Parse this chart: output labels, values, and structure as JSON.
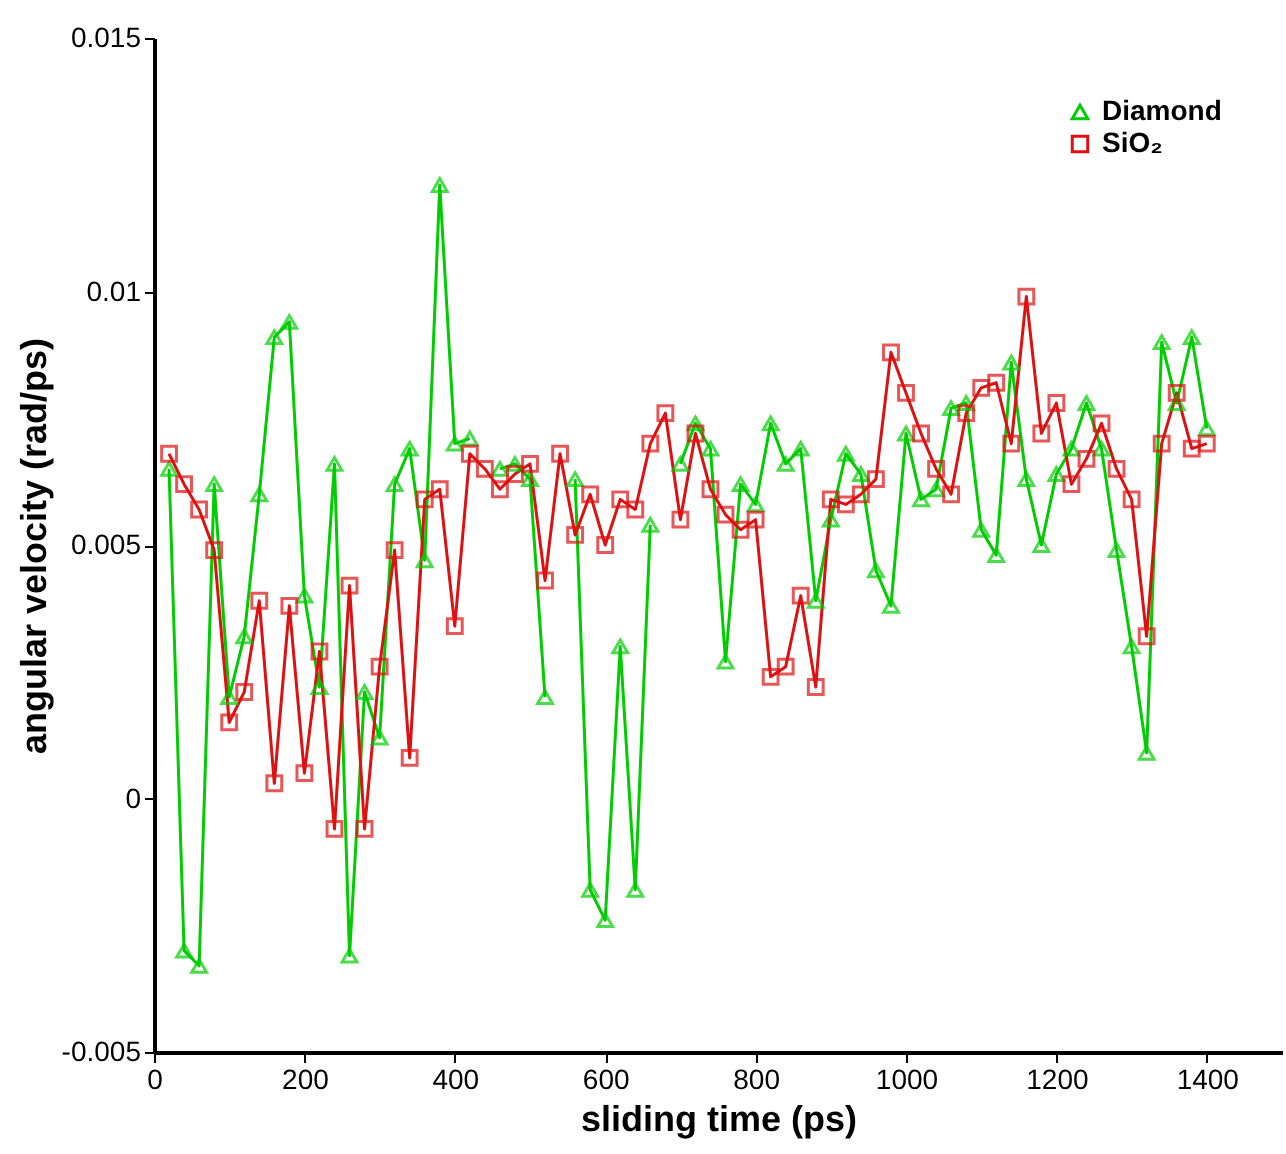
{
  "chart_data": {
    "type": "line",
    "xlabel": "sliding time (ps)",
    "ylabel": "angular velocity (rad/ps)",
    "x": [
      20,
      40,
      60,
      80,
      100,
      120,
      140,
      160,
      180,
      200,
      220,
      240,
      260,
      280,
      300,
      320,
      340,
      360,
      380,
      400,
      420,
      440,
      460,
      480,
      500,
      520,
      540,
      560,
      580,
      600,
      620,
      640,
      660,
      680,
      700,
      720,
      740,
      760,
      780,
      800,
      820,
      840,
      860,
      880,
      900,
      920,
      940,
      960,
      980,
      1000,
      1020,
      1040,
      1060,
      1080,
      1100,
      1120,
      1140,
      1160,
      1180,
      1200,
      1220,
      1240,
      1260,
      1280,
      1300,
      1320,
      1340,
      1360,
      1380,
      1400
    ],
    "series": [
      {
        "name": "Diamond",
        "color": "#00cc00",
        "marker": "triangle",
        "values": [
          0.0065,
          -0.003,
          -0.0033,
          0.0062,
          0.002,
          0.0032,
          0.006,
          0.0091,
          0.0094,
          0.004,
          0.0022,
          0.0066,
          -0.0031,
          0.0021,
          0.0012,
          0.0062,
          0.0069,
          0.0047,
          0.0121,
          0.007,
          0.0071,
          null,
          0.0065,
          0.0066,
          0.0063,
          0.002,
          null,
          0.0063,
          -0.0018,
          -0.0024,
          0.003,
          -0.0018,
          0.0054,
          null,
          0.0066,
          0.0074,
          0.0069,
          0.0027,
          0.0062,
          0.0058,
          0.0074,
          0.0066,
          0.0069,
          0.0039,
          0.0055,
          0.0068,
          0.0064,
          0.0045,
          0.0038,
          0.0072,
          0.0059,
          0.0061,
          0.0077,
          0.0078,
          0.0053,
          0.0048,
          0.0086,
          0.0063,
          0.005,
          0.0064,
          0.0069,
          0.0078,
          0.0069,
          0.0049,
          0.003,
          0.0009,
          0.009,
          0.0078,
          0.0091,
          0.0073
        ]
      },
      {
        "name": "SiO₂",
        "color": "#dd1111",
        "marker": "square",
        "values": [
          0.0068,
          0.0062,
          0.0057,
          0.0049,
          0.0015,
          0.0021,
          0.0039,
          0.0003,
          0.0038,
          0.0005,
          0.0029,
          -0.0006,
          0.0042,
          -0.0006,
          0.0026,
          0.0049,
          0.0008,
          0.0059,
          0.0061,
          0.0034,
          0.0068,
          0.0065,
          0.0061,
          0.0064,
          0.0066,
          0.0043,
          0.0068,
          0.0052,
          0.006,
          0.005,
          0.0059,
          0.0057,
          0.007,
          0.0076,
          0.0055,
          0.0072,
          0.0061,
          0.0056,
          0.0053,
          0.0055,
          0.0024,
          0.0026,
          0.004,
          0.0022,
          0.0059,
          0.0058,
          0.006,
          0.0063,
          0.0088,
          0.008,
          0.0072,
          0.0065,
          0.006,
          0.0076,
          0.0081,
          0.0082,
          0.007,
          0.0099,
          0.0072,
          0.0078,
          0.0062,
          0.0067,
          0.0074,
          0.0065,
          0.0059,
          0.0032,
          0.007,
          0.008,
          0.0069,
          0.007
        ]
      }
    ],
    "xlim": [
      0,
      1500
    ],
    "xticks": [
      0,
      200,
      400,
      600,
      800,
      1000,
      1200,
      1400
    ],
    "ylim": [
      -0.005,
      0.015
    ],
    "yticks": [
      -0.005,
      0,
      0.005,
      0.01,
      0.015
    ],
    "grid": false,
    "legend": "top right",
    "line_style": "solid"
  }
}
